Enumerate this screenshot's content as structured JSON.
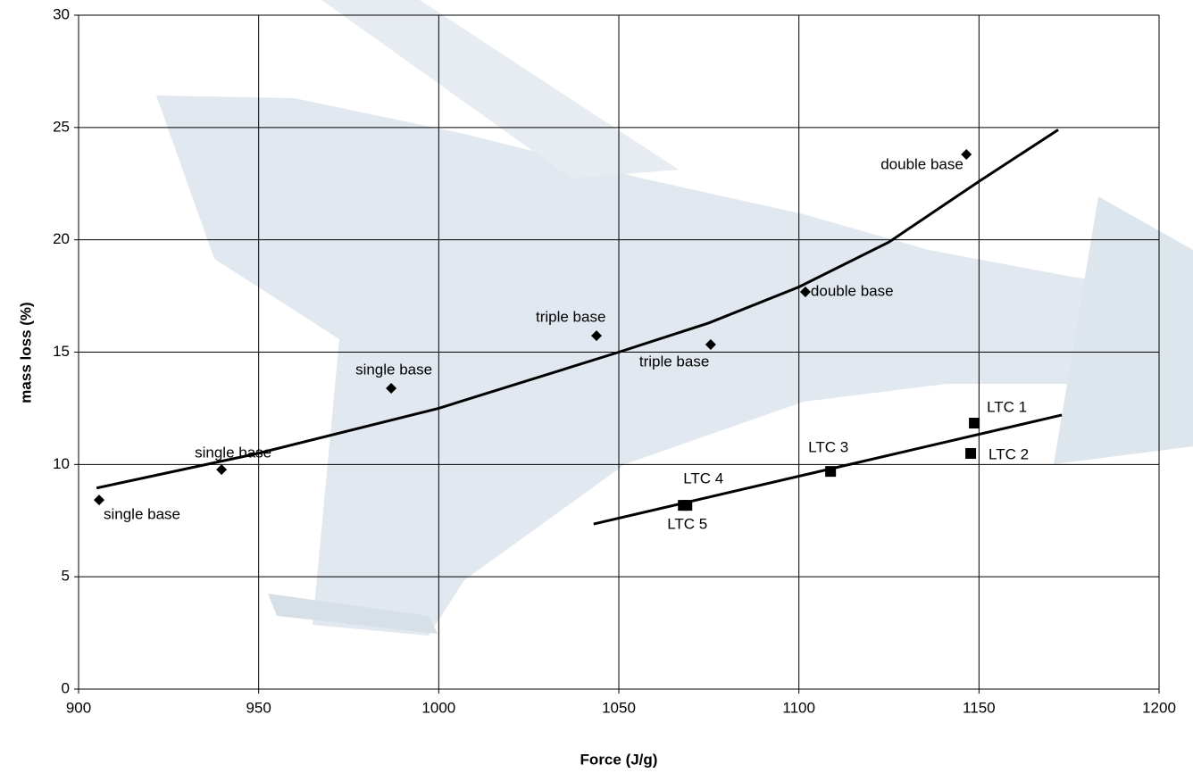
{
  "chart_data": {
    "type": "scatter",
    "x_label": "Force (J/g)",
    "y_label": "mass loss (%)",
    "xlim": [
      900,
      1200
    ],
    "ylim": [
      0,
      30
    ],
    "xticks": [
      900,
      950,
      1000,
      1050,
      1100,
      1150,
      1200
    ],
    "yticks": [
      0,
      5,
      10,
      15,
      20,
      25,
      30
    ],
    "grid": true,
    "series": [
      {
        "marker": "diamond",
        "color": "#000000",
        "x": [
          905.7,
          939.7,
          986.8,
          1043.8,
          1075.5,
          1101.8,
          1146.5
        ],
        "values": [
          8.42,
          9.77,
          13.39,
          15.73,
          15.34,
          17.68,
          23.8
        ],
        "labels": [
          "single base",
          "single base",
          "single base",
          "triple base",
          "triple base",
          "double base",
          "double base"
        ]
      },
      {
        "marker": "square",
        "color": "#000000",
        "x": [
          1148.7,
          1147.7,
          1108.8,
          1067.9,
          1068.9
        ],
        "values": [
          11.84,
          10.49,
          9.69,
          8.18,
          8.18
        ],
        "labels": [
          "LTC 1",
          "LTC 2",
          "LTC 3",
          "LTC 4",
          "LTC 5"
        ]
      }
    ],
    "trendlines": [
      {
        "color": "#000000",
        "x": [
          905,
          950,
          1000,
          1050,
          1075,
          1100,
          1125,
          1150,
          1172
        ],
        "values": [
          8.95,
          10.5,
          12.5,
          15.0,
          16.3,
          17.9,
          19.9,
          22.6,
          24.9
        ]
      },
      {
        "color": "#000000",
        "x": [
          1043,
          1110,
          1173
        ],
        "values": [
          7.35,
          9.85,
          12.2
        ]
      }
    ]
  }
}
